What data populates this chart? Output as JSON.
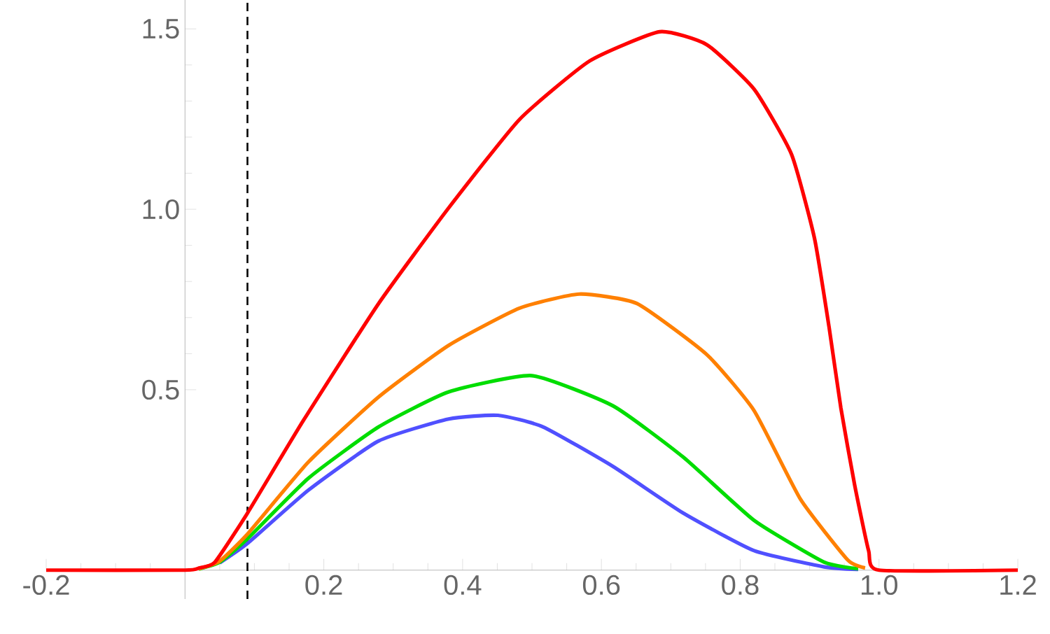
{
  "chart_data": {
    "type": "line",
    "xlim": [
      -0.2,
      1.2
    ],
    "ylim": [
      -0.08,
      1.58
    ],
    "xticks": [
      {
        "value": -0.2,
        "label": "-0.2"
      },
      {
        "value": 0,
        "label": null
      },
      {
        "value": 0.2,
        "label": "0.2"
      },
      {
        "value": 0.4,
        "label": "0.4"
      },
      {
        "value": 0.6,
        "label": "0.6"
      },
      {
        "value": 0.8,
        "label": "0.8"
      },
      {
        "value": 1.0,
        "label": "1.0"
      },
      {
        "value": 1.2,
        "label": "1.2"
      }
    ],
    "yticks": [
      {
        "value": 0.5,
        "label": "0.5"
      },
      {
        "value": 1.0,
        "label": "1.0"
      },
      {
        "value": 1.5,
        "label": "1.5"
      }
    ],
    "grid": false,
    "line_style": "solid",
    "ref_lines": [
      {
        "axis": "x",
        "value": 0.09,
        "color": "#000000",
        "line_style": "dashed"
      }
    ],
    "series": [
      {
        "color": "#5050ff",
        "x": [
          0.05,
          0.09,
          0.178,
          0.279,
          0.38,
          0.451,
          0.516,
          0.617,
          0.718,
          0.82,
          0.921,
          0.97
        ],
        "values": [
          0.02,
          0.074,
          0.222,
          0.358,
          0.419,
          0.429,
          0.397,
          0.287,
          0.158,
          0.054,
          0.009,
          0.002
        ]
      },
      {
        "color": "#00dd00",
        "x": [
          0.02,
          0.05,
          0.09,
          0.178,
          0.279,
          0.38,
          0.5,
          0.617,
          0.718,
          0.82,
          0.921,
          0.97
        ],
        "values": [
          0.003,
          0.022,
          0.087,
          0.255,
          0.397,
          0.494,
          0.539,
          0.455,
          0.313,
          0.138,
          0.022,
          0.004
        ]
      },
      {
        "color": "#ff8000",
        "x": [
          0.02,
          0.05,
          0.09,
          0.178,
          0.279,
          0.38,
          0.482,
          0.568,
          0.651,
          0.752,
          0.82,
          0.887,
          0.955,
          0.98
        ],
        "values": [
          0.004,
          0.025,
          0.1,
          0.3,
          0.48,
          0.623,
          0.726,
          0.765,
          0.739,
          0.597,
          0.442,
          0.196,
          0.028,
          0.006
        ]
      },
      {
        "color": "#ff0000",
        "x": [
          -0.2,
          0,
          0.02,
          0.043,
          0.09,
          0.171,
          0.279,
          0.38,
          0.482,
          0.583,
          0.684,
          0.752,
          0.82,
          0.874,
          0.907,
          0.928,
          0.945,
          0.965,
          0.985,
          1.0,
          1.2
        ],
        "values": [
          0,
          0,
          0.006,
          0.022,
          0.158,
          0.416,
          0.739,
          1.004,
          1.249,
          1.411,
          1.492,
          1.456,
          1.333,
          1.152,
          0.92,
          0.674,
          0.45,
          0.235,
          0.054,
          0,
          0
        ]
      }
    ]
  }
}
